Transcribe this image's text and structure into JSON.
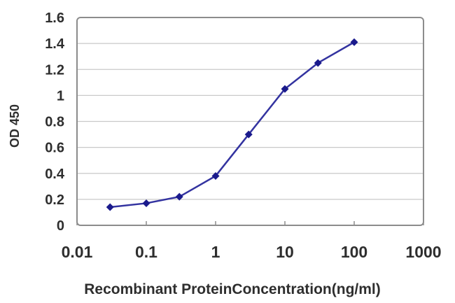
{
  "chart_data": {
    "type": "line",
    "title": "",
    "xlabel": "Recombinant ProteinConcentration(ng/ml)",
    "ylabel": "OD 450",
    "x_scale": "log",
    "xlim": [
      0.01,
      1000
    ],
    "ylim": [
      0,
      1.6
    ],
    "x": [
      0.03,
      0.1,
      0.3,
      1,
      3,
      10,
      30,
      100
    ],
    "y": [
      0.14,
      0.17,
      0.22,
      0.38,
      0.7,
      1.05,
      1.25,
      1.41
    ],
    "x_tick_values": [
      0.01,
      0.1,
      1,
      10,
      100,
      1000
    ],
    "x_tick_labels": [
      "0.01",
      "0.1",
      "1",
      "10",
      "100",
      "1000"
    ],
    "y_tick_values": [
      0,
      0.2,
      0.4,
      0.6,
      0.8,
      1,
      1.2,
      1.4,
      1.6
    ],
    "y_tick_labels": [
      "0",
      "0.2",
      "0.4",
      "0.6",
      "0.8",
      "1",
      "1.2",
      "1.4",
      "1.6"
    ],
    "grid": "horizontal",
    "legend": "none",
    "marker": "diamond",
    "colors": {
      "line": "#3333A0",
      "marker": "#1A1A8C",
      "grid": "#C9C9C9",
      "frame": "#8C8C8C",
      "text": "#2E2E2E"
    }
  }
}
